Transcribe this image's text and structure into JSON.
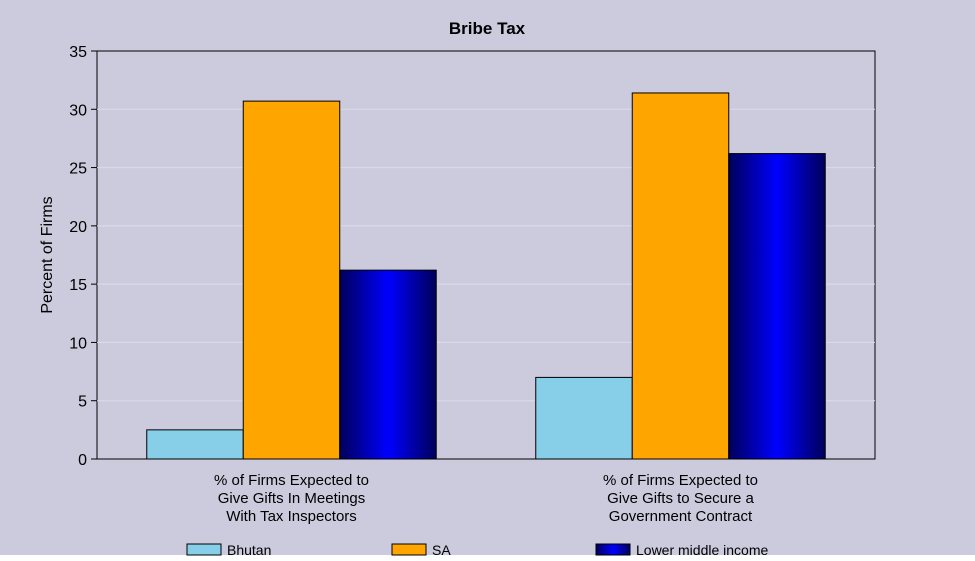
{
  "chart_data": {
    "type": "bar",
    "title": "Bribe Tax",
    "xlabel": "",
    "ylabel": "Percent of Firms",
    "ylim": [
      0,
      35
    ],
    "yticks": [
      0,
      5,
      10,
      15,
      20,
      25,
      30,
      35
    ],
    "grid": true,
    "legend_position": "bottom",
    "categories": [
      [
        "% of Firms Expected to",
        "Give Gifts In Meetings",
        "With Tax Inspectors"
      ],
      [
        "% of Firms Expected to",
        "Give Gifts to Secure a",
        "Government Contract"
      ]
    ],
    "series": [
      {
        "name": "Bhutan",
        "values": [
          2.5,
          7.0
        ],
        "color": "#87cee9"
      },
      {
        "name": "SA",
        "values": [
          30.7,
          31.4
        ],
        "color": "#ffa500"
      },
      {
        "name": "Lower middle income",
        "values": [
          16.2,
          26.2
        ],
        "color": "#0000c8"
      }
    ]
  }
}
